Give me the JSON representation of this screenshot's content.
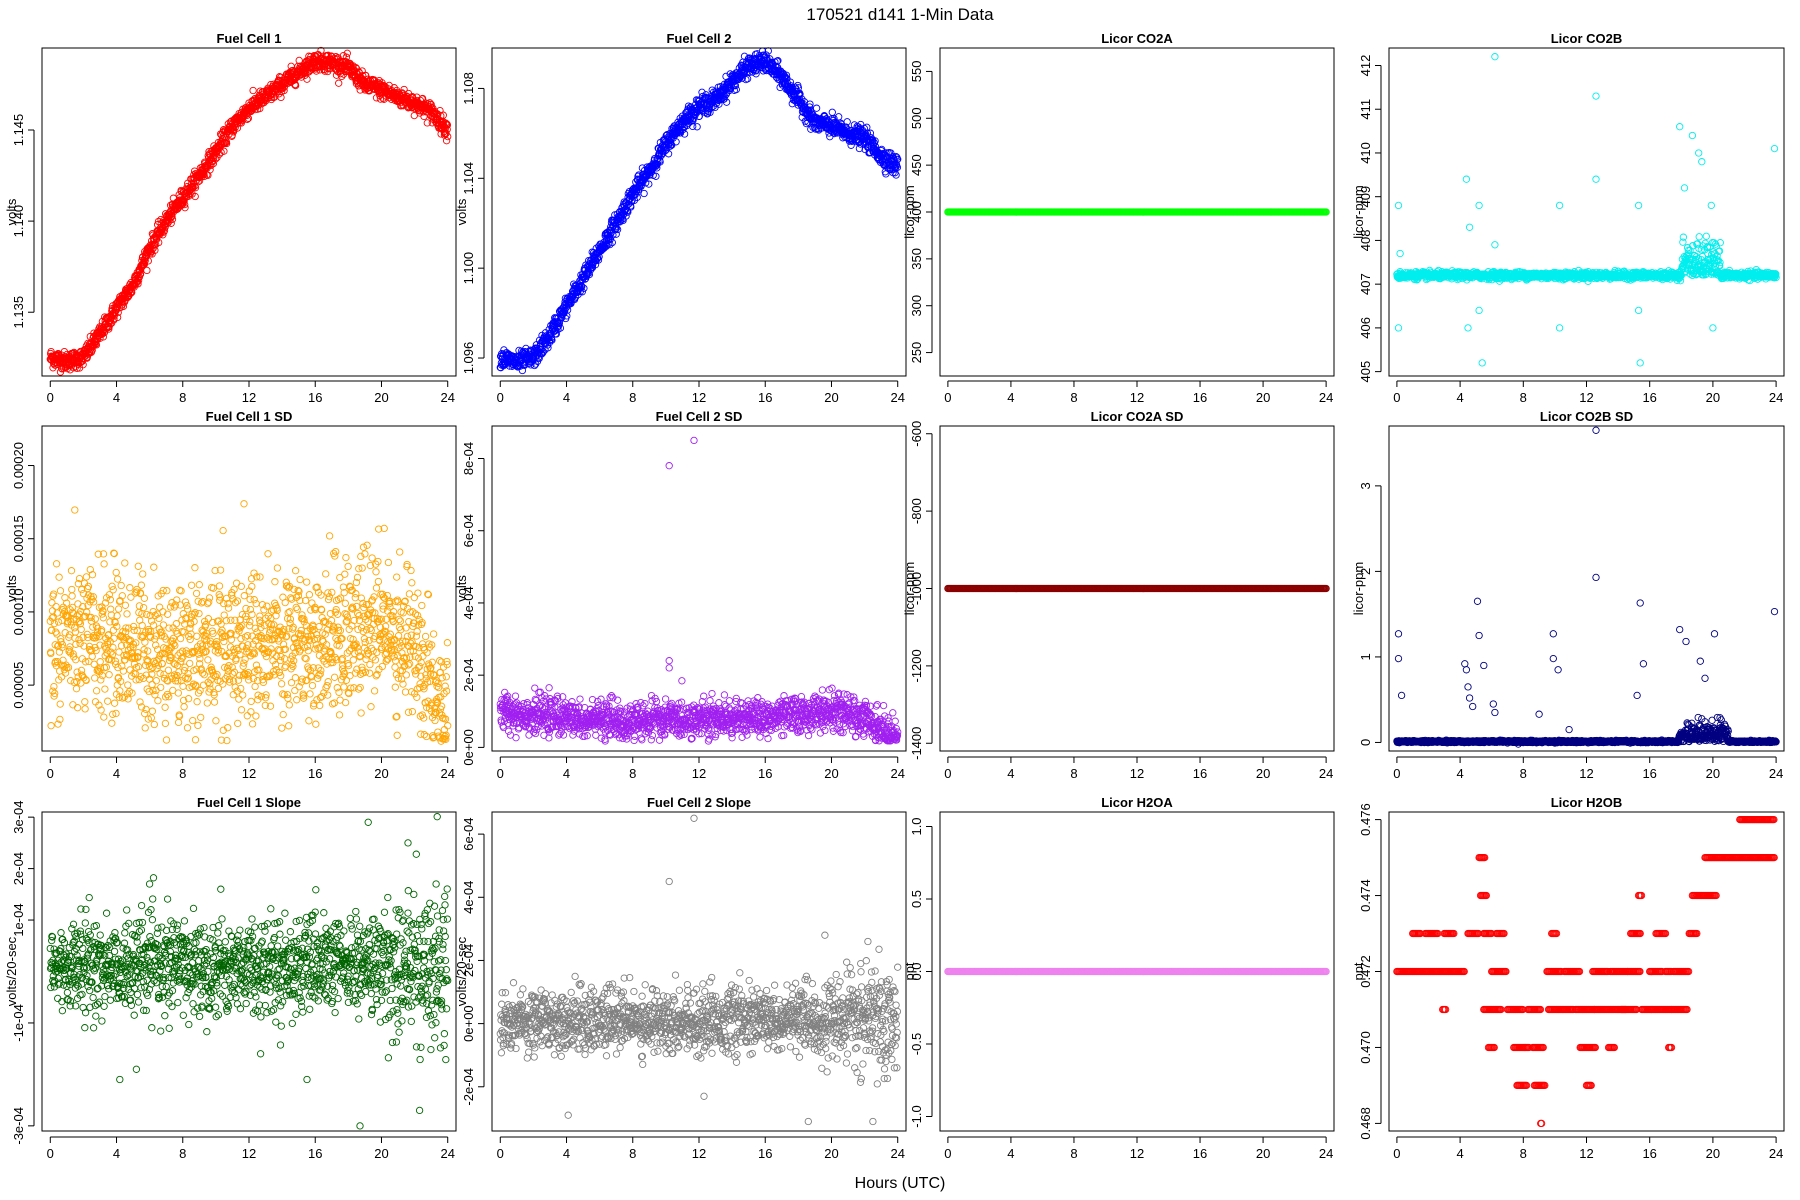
{
  "figure": {
    "title": "170521    d141    1-Min Data",
    "xlabel": "Hours (UTC)"
  },
  "chart_data": [
    {
      "type": "scatter",
      "title": "Fuel Cell 1",
      "ylabel": "volts",
      "color": "#ff0000",
      "xlim": [
        -0.5,
        24.5
      ],
      "ylim": [
        1.1315,
        1.1495
      ],
      "xticks": [
        "0",
        "4",
        "8",
        "12",
        "16",
        "20",
        "24"
      ],
      "xtick_values": [
        0,
        4,
        8,
        12,
        16,
        20,
        24
      ],
      "yticks": [
        "1.135",
        "1.140",
        "1.145"
      ],
      "ytick_values": [
        1.135,
        1.14,
        1.145
      ],
      "x": [
        0,
        1,
        2,
        3,
        4,
        5,
        6,
        7,
        8,
        9,
        10,
        11,
        12,
        13,
        14,
        15,
        16,
        17,
        18,
        19,
        20,
        21,
        22,
        23,
        24
      ],
      "y": [
        1.1325,
        1.1323,
        1.1325,
        1.1338,
        1.1352,
        1.1365,
        1.1385,
        1.14,
        1.1413,
        1.1425,
        1.1438,
        1.1452,
        1.1462,
        1.1468,
        1.1475,
        1.1482,
        1.1488,
        1.1487,
        1.1484,
        1.1475,
        1.1472,
        1.1468,
        1.1465,
        1.146,
        1.145
      ],
      "noise": 0.00025,
      "mode": "curve"
    },
    {
      "type": "scatter",
      "title": "Fuel Cell 2",
      "ylabel": "volts",
      "color": "#0000ff",
      "xlim": [
        -0.5,
        24.5
      ],
      "ylim": [
        1.0952,
        1.1098
      ],
      "xticks": [
        "0",
        "4",
        "8",
        "12",
        "16",
        "20",
        "24"
      ],
      "xtick_values": [
        0,
        4,
        8,
        12,
        16,
        20,
        24
      ],
      "yticks": [
        "1.096",
        "1.100",
        "1.104",
        "1.108"
      ],
      "ytick_values": [
        1.096,
        1.1,
        1.104,
        1.108
      ],
      "x": [
        0,
        1,
        2,
        3,
        4,
        5,
        6,
        7,
        8,
        9,
        10,
        11,
        12,
        13,
        14,
        15,
        16,
        17,
        18,
        19,
        20,
        21,
        22,
        23,
        24
      ],
      "y": [
        1.096,
        1.0958,
        1.096,
        1.097,
        1.0983,
        1.0995,
        1.1008,
        1.102,
        1.1033,
        1.1043,
        1.1055,
        1.1065,
        1.1072,
        1.1075,
        1.1083,
        1.109,
        1.1092,
        1.1085,
        1.1075,
        1.1065,
        1.1063,
        1.106,
        1.1058,
        1.105,
        1.1045
      ],
      "noise": 0.00022,
      "mode": "curve"
    },
    {
      "type": "scatter",
      "title": "Licor CO2A",
      "ylabel": "licor-ppm",
      "color": "#00ff00",
      "xlim": [
        -0.5,
        24.5
      ],
      "ylim": [
        225,
        575
      ],
      "xticks": [
        "0",
        "4",
        "8",
        "12",
        "16",
        "20",
        "24"
      ],
      "xtick_values": [
        0,
        4,
        8,
        12,
        16,
        20,
        24
      ],
      "yticks": [
        "250",
        "300",
        "350",
        "400",
        "450",
        "500",
        "550"
      ],
      "ytick_values": [
        250,
        300,
        350,
        400,
        450,
        500,
        550
      ],
      "x": [
        0,
        24
      ],
      "y": [
        400,
        400
      ],
      "noise": 0,
      "mode": "flat"
    },
    {
      "type": "scatter",
      "title": "Licor CO2B",
      "ylabel": "licor-ppm",
      "color": "#00eeee",
      "xlim": [
        -0.5,
        24.5
      ],
      "ylim": [
        404.9,
        412.4
      ],
      "xticks": [
        "0",
        "4",
        "8",
        "12",
        "16",
        "20",
        "24"
      ],
      "xtick_values": [
        0,
        4,
        8,
        12,
        16,
        20,
        24
      ],
      "yticks": [
        "405",
        "406",
        "407",
        "408",
        "409",
        "410",
        "411",
        "412"
      ],
      "ytick_values": [
        405,
        406,
        407,
        408,
        409,
        410,
        411,
        412
      ],
      "x": [
        0,
        24
      ],
      "y": [
        407.2,
        407.2
      ],
      "noise": 0.04,
      "mode": "baseline",
      "outliers": [
        [
          0.1,
          408.8
        ],
        [
          0.1,
          406.0
        ],
        [
          0.2,
          407.7
        ],
        [
          4.4,
          409.4
        ],
        [
          4.6,
          408.3
        ],
        [
          4.5,
          406.0
        ],
        [
          5.2,
          408.8
        ],
        [
          5.2,
          406.4
        ],
        [
          5.4,
          405.2
        ],
        [
          6.2,
          412.2
        ],
        [
          6.2,
          407.9
        ],
        [
          10.3,
          408.8
        ],
        [
          10.3,
          406.0
        ],
        [
          12.6,
          411.3
        ],
        [
          12.6,
          409.4
        ],
        [
          15.3,
          408.8
        ],
        [
          15.3,
          406.4
        ],
        [
          15.4,
          405.2
        ],
        [
          17.9,
          410.6
        ],
        [
          18.2,
          409.2
        ],
        [
          18.7,
          410.4
        ],
        [
          19.1,
          410.0
        ],
        [
          19.3,
          409.8
        ],
        [
          19.9,
          408.8
        ],
        [
          20.0,
          406.0
        ],
        [
          23.9,
          410.1
        ]
      ],
      "cluster": [
        18.0,
        20.5,
        0.6
      ]
    },
    {
      "type": "scatter",
      "title": "Fuel Cell 1 SD",
      "ylabel": "volts",
      "color": "#ffa500",
      "xlim": [
        -0.5,
        24.5
      ],
      "ylim": [
        5e-06,
        0.000227
      ],
      "xticks": [
        "0",
        "4",
        "8",
        "12",
        "16",
        "20",
        "24"
      ],
      "xtick_values": [
        0,
        4,
        8,
        12,
        16,
        20,
        24
      ],
      "yticks": [
        "0.00005",
        "0.00010",
        "0.00015",
        "0.00020"
      ],
      "ytick_values": [
        5e-05,
        0.0001,
        0.00015,
        0.0002
      ],
      "x": [
        0,
        4,
        8,
        12,
        16,
        20,
        22,
        23,
        24
      ],
      "y": [
        8e-05,
        8e-05,
        7e-05,
        8e-05,
        8e-05,
        9e-05,
        8e-05,
        5e-05,
        3e-05
      ],
      "noise": 2.5e-05,
      "mode": "noisy"
    },
    {
      "type": "scatter",
      "title": "Fuel Cell 2 SD",
      "ylabel": "volts",
      "color": "#a020f0",
      "xlim": [
        -0.5,
        24.5
      ],
      "ylim": [
        -1e-05,
        0.00089
      ],
      "xticks": [
        "0",
        "4",
        "8",
        "12",
        "16",
        "20",
        "24"
      ],
      "xtick_values": [
        0,
        4,
        8,
        12,
        16,
        20,
        24
      ],
      "yticks": [
        "0e+00",
        "2e-04",
        "4e-04",
        "6e-04",
        "8e-04"
      ],
      "ytick_values": [
        0,
        0.0002,
        0.0004,
        0.0006,
        0.0008
      ],
      "x": [
        0,
        4,
        8,
        12,
        16,
        20,
        22,
        23,
        24
      ],
      "y": [
        0.0001,
        8e-05,
        7e-05,
        8e-05,
        8e-05,
        0.0001,
        8e-05,
        5e-05,
        2e-05
      ],
      "noise": 2.5e-05,
      "mode": "noisy",
      "outliers": [
        [
          10.2,
          0.00078
        ],
        [
          11.7,
          0.00085
        ],
        [
          10.2,
          0.00024
        ],
        [
          10.2,
          0.00022
        ]
      ]
    },
    {
      "type": "scatter",
      "title": "Licor CO2A SD",
      "ylabel": "licor-ppm",
      "color": "#8b0000",
      "xlim": [
        -0.5,
        24.5
      ],
      "ylim": [
        -1420,
        -580
      ],
      "xticks": [
        "0",
        "4",
        "8",
        "12",
        "16",
        "20",
        "24"
      ],
      "xtick_values": [
        0,
        4,
        8,
        12,
        16,
        20,
        24
      ],
      "yticks": [
        "-1400",
        "-1200",
        "-1000",
        "-800",
        "-600"
      ],
      "ytick_values": [
        -1400,
        -1200,
        -1000,
        -800,
        -600
      ],
      "x": [
        0,
        24
      ],
      "y": [
        -1000,
        -1000
      ],
      "noise": 0,
      "mode": "flat"
    },
    {
      "type": "scatter",
      "title": "Licor CO2B SD",
      "ylabel": "licor-ppm",
      "color": "#000080",
      "xlim": [
        -0.5,
        24.5
      ],
      "ylim": [
        -0.1,
        3.7
      ],
      "xticks": [
        "0",
        "4",
        "8",
        "12",
        "16",
        "20",
        "24"
      ],
      "xtick_values": [
        0,
        4,
        8,
        12,
        16,
        20,
        24
      ],
      "yticks": [
        "0",
        "1",
        "2",
        "3"
      ],
      "ytick_values": [
        0,
        1,
        2,
        3
      ],
      "x": [
        0,
        24
      ],
      "y": [
        0.01,
        0.01
      ],
      "noise": 0.006,
      "mode": "baseline",
      "outliers": [
        [
          0.1,
          1.27
        ],
        [
          0.1,
          0.98
        ],
        [
          0.3,
          0.55
        ],
        [
          4.3,
          0.92
        ],
        [
          4.4,
          0.85
        ],
        [
          4.5,
          0.65
        ],
        [
          4.6,
          0.52
        ],
        [
          4.8,
          0.42
        ],
        [
          5.1,
          1.65
        ],
        [
          5.2,
          1.25
        ],
        [
          5.5,
          0.9
        ],
        [
          6.1,
          0.45
        ],
        [
          6.2,
          0.35
        ],
        [
          9.0,
          0.33
        ],
        [
          9.9,
          1.27
        ],
        [
          9.9,
          0.98
        ],
        [
          10.2,
          0.85
        ],
        [
          10.9,
          0.15
        ],
        [
          12.6,
          3.65
        ],
        [
          12.6,
          1.93
        ],
        [
          15.2,
          0.55
        ],
        [
          15.4,
          1.63
        ],
        [
          15.6,
          0.92
        ],
        [
          17.9,
          1.32
        ],
        [
          18.3,
          1.18
        ],
        [
          19.2,
          0.95
        ],
        [
          19.5,
          0.75
        ],
        [
          20.1,
          1.27
        ],
        [
          23.9,
          1.53
        ]
      ],
      "cluster": [
        17.8,
        21.0,
        0.35
      ]
    },
    {
      "type": "scatter",
      "title": "Fuel Cell 1 Slope",
      "ylabel": "volts/20-sec",
      "color": "#006400",
      "xlim": [
        -0.5,
        24.5
      ],
      "ylim": [
        -0.00031,
        0.00031
      ],
      "xticks": [
        "0",
        "4",
        "8",
        "12",
        "16",
        "20",
        "24"
      ],
      "xtick_values": [
        0,
        4,
        8,
        12,
        16,
        20,
        24
      ],
      "yticks": [
        "-3e-04",
        "-1e-04",
        "1e-04",
        "2e-04",
        "3e-04"
      ],
      "ytick_values": [
        -0.0003,
        -0.0001,
        0.0001,
        0.0002,
        0.0003
      ],
      "x": [
        0,
        24
      ],
      "y": [
        1e-05,
        1e-05
      ],
      "noise": 4.5e-05,
      "mode": "noisy",
      "outliers": [
        [
          4.2,
          -0.00021
        ],
        [
          5.2,
          -0.00019
        ],
        [
          6.0,
          0.00017
        ],
        [
          10.3,
          0.00016
        ],
        [
          12.7,
          -0.00016
        ],
        [
          15.5,
          -0.00021
        ],
        [
          18.7,
          -0.0003
        ],
        [
          19.2,
          0.00029
        ],
        [
          21.6,
          0.00025
        ],
        [
          22.3,
          -0.00027
        ],
        [
          23.3,
          0.00017
        ]
      ],
      "growth": [
        18.5,
        24,
        1.8
      ]
    },
    {
      "type": "scatter",
      "title": "Fuel Cell 2 Slope",
      "ylabel": "volts/20-sec",
      "color": "#808080",
      "xlim": [
        -0.5,
        24.5
      ],
      "ylim": [
        -0.00034,
        0.00067
      ],
      "xticks": [
        "0",
        "4",
        "8",
        "12",
        "16",
        "20",
        "24"
      ],
      "xtick_values": [
        0,
        4,
        8,
        12,
        16,
        20,
        24
      ],
      "yticks": [
        "-2e-04",
        "0e+00",
        "2e-04",
        "4e-04",
        "6e-04"
      ],
      "ytick_values": [
        -0.0002,
        0,
        0.0002,
        0.0004,
        0.0006
      ],
      "x": [
        0,
        24
      ],
      "y": [
        1e-05,
        1e-05
      ],
      "noise": 5e-05,
      "mode": "noisy",
      "outliers": [
        [
          10.2,
          0.00045
        ],
        [
          11.7,
          0.00065
        ],
        [
          4.1,
          -0.00029
        ],
        [
          12.3,
          -0.00023
        ],
        [
          18.6,
          -0.00031
        ],
        [
          22.5,
          -0.00031
        ],
        [
          19.6,
          0.00028
        ],
        [
          22.2,
          0.00026
        ]
      ],
      "growth": [
        19.0,
        24,
        1.8
      ]
    },
    {
      "type": "scatter",
      "title": "Licor H2OA",
      "ylabel": "ppt",
      "color": "#ee82ee",
      "xlim": [
        -0.5,
        24.5
      ],
      "ylim": [
        -1.1,
        1.1
      ],
      "xticks": [
        "0",
        "4",
        "8",
        "12",
        "16",
        "20",
        "24"
      ],
      "xtick_values": [
        0,
        4,
        8,
        12,
        16,
        20,
        24
      ],
      "yticks": [
        "-1.0",
        "-0.5",
        "0.0",
        "0.5",
        "1.0"
      ],
      "ytick_values": [
        -1.0,
        -0.5,
        0.0,
        0.5,
        1.0
      ],
      "x": [
        0,
        24
      ],
      "y": [
        0,
        0
      ],
      "noise": 0,
      "mode": "flat"
    },
    {
      "type": "scatter",
      "title": "Licor H2OB",
      "ylabel": "ppt",
      "color": "#ff0000",
      "xlim": [
        -0.5,
        24.5
      ],
      "ylim": [
        0.4678,
        0.4762
      ],
      "xticks": [
        "0",
        "4",
        "8",
        "12",
        "16",
        "20",
        "24"
      ],
      "xtick_values": [
        0,
        4,
        8,
        12,
        16,
        20,
        24
      ],
      "yticks": [
        "0.468",
        "0.470",
        "0.472",
        "0.474",
        "0.476"
      ],
      "ytick_values": [
        0.468,
        0.47,
        0.472,
        0.474,
        0.476
      ],
      "mode": "levels",
      "segments": [
        [
          0.0,
          4.3,
          0.472
        ],
        [
          1.0,
          1.5,
          0.473
        ],
        [
          1.8,
          2.6,
          0.473
        ],
        [
          3.0,
          3.6,
          0.473
        ],
        [
          2.9,
          3.1,
          0.471
        ],
        [
          4.5,
          5.2,
          0.473
        ],
        [
          5.2,
          5.6,
          0.475
        ],
        [
          5.3,
          5.7,
          0.474
        ],
        [
          5.5,
          6.0,
          0.473
        ],
        [
          5.5,
          6.6,
          0.471
        ],
        [
          5.8,
          6.2,
          0.47
        ],
        [
          6.0,
          6.9,
          0.472
        ],
        [
          6.3,
          6.8,
          0.473
        ],
        [
          7.0,
          8.0,
          0.471
        ],
        [
          7.4,
          8.4,
          0.47
        ],
        [
          7.6,
          8.2,
          0.469
        ],
        [
          8.3,
          9.1,
          0.471
        ],
        [
          8.6,
          9.3,
          0.47
        ],
        [
          8.7,
          9.4,
          0.469
        ],
        [
          9.1,
          9.2,
          0.468
        ],
        [
          9.5,
          10.4,
          0.472
        ],
        [
          9.6,
          11.2,
          0.471
        ],
        [
          9.8,
          10.1,
          0.473
        ],
        [
          10.6,
          11.6,
          0.472
        ],
        [
          11.3,
          12.5,
          0.471
        ],
        [
          11.6,
          12.6,
          0.47
        ],
        [
          12.0,
          12.3,
          0.469
        ],
        [
          12.4,
          13.4,
          0.472
        ],
        [
          12.5,
          14.5,
          0.471
        ],
        [
          13.4,
          13.8,
          0.47
        ],
        [
          13.5,
          14.6,
          0.472
        ],
        [
          14.2,
          15.2,
          0.471
        ],
        [
          14.6,
          15.4,
          0.472
        ],
        [
          14.8,
          15.4,
          0.473
        ],
        [
          15.3,
          15.5,
          0.474
        ],
        [
          15.5,
          17.4,
          0.471
        ],
        [
          16.0,
          16.8,
          0.472
        ],
        [
          16.4,
          17.0,
          0.473
        ],
        [
          17.0,
          17.4,
          0.472
        ],
        [
          17.2,
          17.4,
          0.47
        ],
        [
          17.4,
          18.4,
          0.471
        ],
        [
          17.5,
          18.5,
          0.472
        ],
        [
          18.5,
          19.0,
          0.473
        ],
        [
          18.7,
          20.2,
          0.474
        ],
        [
          19.5,
          23.9,
          0.475
        ],
        [
          21.7,
          23.9,
          0.476
        ]
      ]
    }
  ]
}
